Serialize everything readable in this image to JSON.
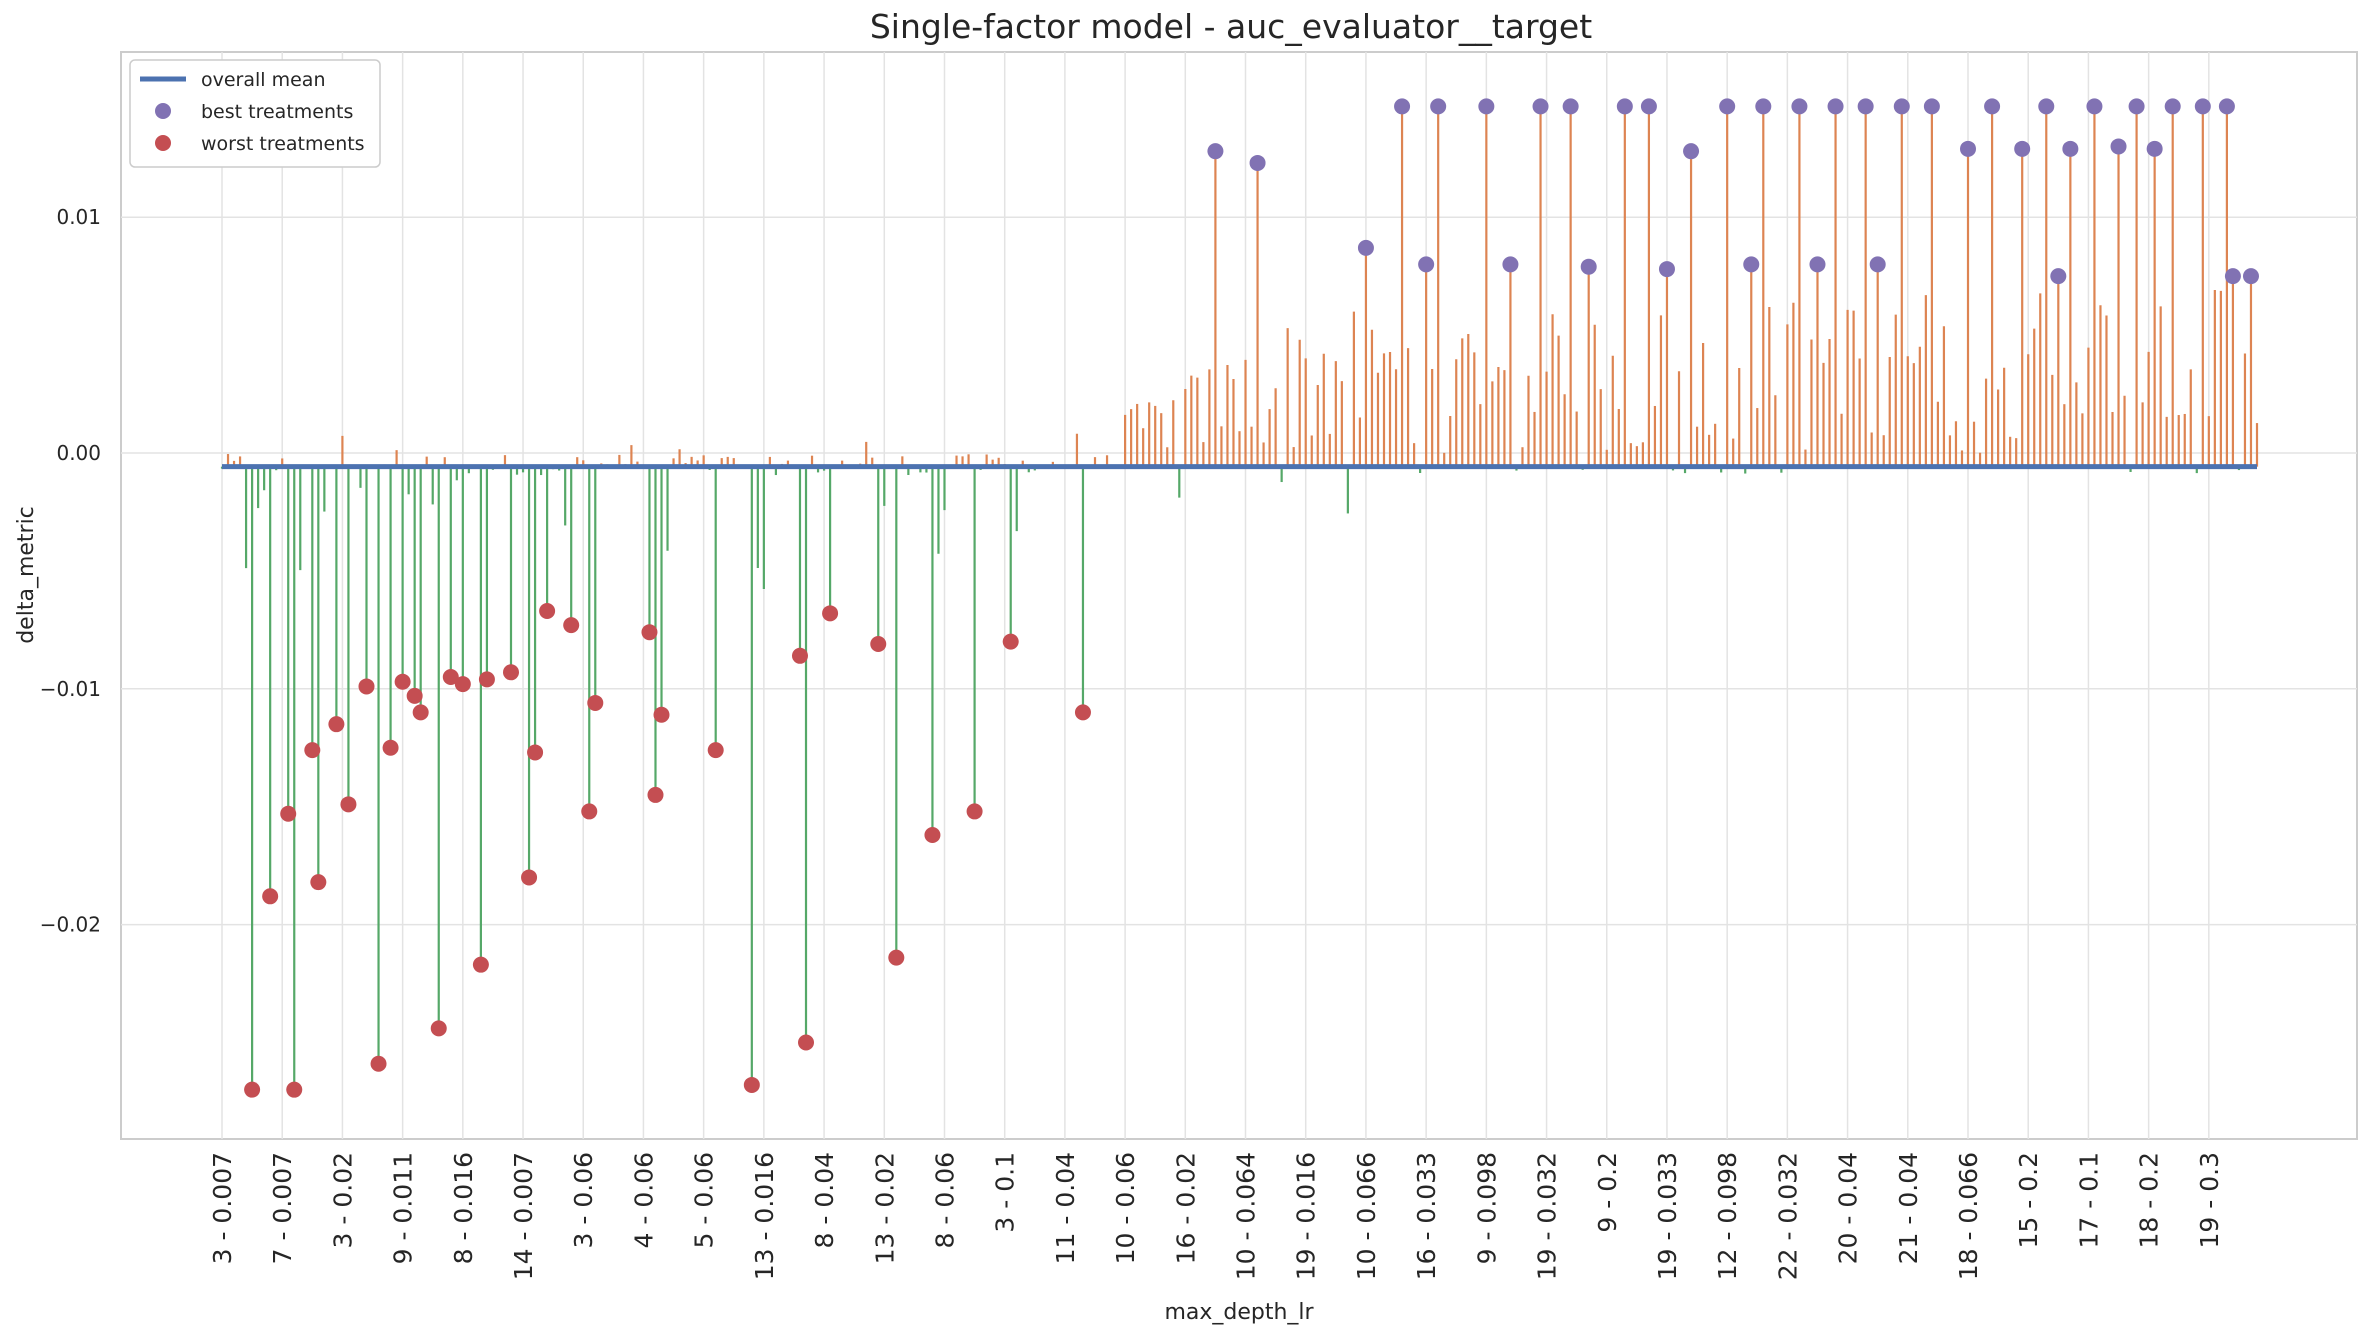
{
  "chart_data": {
    "type": "lollipop",
    "title": "Single-factor model - auc_evaluator__target",
    "xlabel": "max_depth_lr",
    "ylabel": "delta_metric",
    "ylim": [
      -0.0293,
      0.0171
    ],
    "y_ticks": [
      0.01,
      0.0,
      -0.01,
      -0.02
    ],
    "y_tick_labels": [
      "0.01",
      "0.00",
      "−0.01",
      "−0.02"
    ],
    "x_tick_labels": [
      "3 - 0.007",
      "7 - 0.007",
      "3 - 0.02",
      "9 - 0.011",
      "8 - 0.016",
      "14 - 0.007",
      "3 - 0.06",
      "4 - 0.06",
      "5 - 0.06",
      "13 - 0.016",
      "8 - 0.04",
      "13 - 0.02",
      "8 - 0.06",
      "3 - 0.1",
      "11 - 0.04",
      "10 - 0.06",
      "16 - 0.02",
      "10 - 0.064",
      "19 - 0.016",
      "10 - 0.066",
      "16 - 0.033",
      "9 - 0.098",
      "19 - 0.032",
      "9 - 0.2",
      "19 - 0.033",
      "12 - 0.098",
      "22 - 0.032",
      "20 - 0.04",
      "21 - 0.04",
      "18 - 0.066",
      "15 - 0.2",
      "17 - 0.1",
      "18 - 0.2",
      "19 - 0.3"
    ],
    "tick_every": 10,
    "n_treatments": 339,
    "overall_mean": -0.00058,
    "legend": {
      "position": "top-left",
      "entries": [
        "overall mean",
        "best treatments",
        "worst treatments"
      ]
    },
    "colors": {
      "overall_mean": "#4c72b0",
      "best": "#8172b3",
      "worst": "#c44e52",
      "above_mean": "#dd8452",
      "below_mean": "#55a868",
      "grid": "#e3e3e3",
      "frame": "#cccccc"
    },
    "worst_treatments": [
      {
        "x": 5,
        "y": -0.027
      },
      {
        "x": 8,
        "y": -0.0188
      },
      {
        "x": 11,
        "y": -0.0153
      },
      {
        "x": 12,
        "y": -0.027
      },
      {
        "x": 15,
        "y": -0.0126
      },
      {
        "x": 16,
        "y": -0.0182
      },
      {
        "x": 19,
        "y": -0.0115
      },
      {
        "x": 21,
        "y": -0.0149
      },
      {
        "x": 24,
        "y": -0.0099
      },
      {
        "x": 26,
        "y": -0.0259
      },
      {
        "x": 28,
        "y": -0.0125
      },
      {
        "x": 30,
        "y": -0.0097
      },
      {
        "x": 32,
        "y": -0.0103
      },
      {
        "x": 33,
        "y": -0.011
      },
      {
        "x": 36,
        "y": -0.0244
      },
      {
        "x": 38,
        "y": -0.0095
      },
      {
        "x": 40,
        "y": -0.0098
      },
      {
        "x": 43,
        "y": -0.0217
      },
      {
        "x": 44,
        "y": -0.0096
      },
      {
        "x": 48,
        "y": -0.0093
      },
      {
        "x": 51,
        "y": -0.018
      },
      {
        "x": 52,
        "y": -0.0127
      },
      {
        "x": 54,
        "y": -0.0067
      },
      {
        "x": 58,
        "y": -0.0073
      },
      {
        "x": 61,
        "y": -0.0152
      },
      {
        "x": 62,
        "y": -0.0106
      },
      {
        "x": 71,
        "y": -0.0076
      },
      {
        "x": 72,
        "y": -0.0145
      },
      {
        "x": 73,
        "y": -0.0111
      },
      {
        "x": 82,
        "y": -0.0126
      },
      {
        "x": 88,
        "y": -0.0268
      },
      {
        "x": 96,
        "y": -0.0086
      },
      {
        "x": 97,
        "y": -0.025
      },
      {
        "x": 101,
        "y": -0.0068
      },
      {
        "x": 109,
        "y": -0.0081
      },
      {
        "x": 112,
        "y": -0.0214
      },
      {
        "x": 118,
        "y": -0.0162
      },
      {
        "x": 125,
        "y": -0.0152
      },
      {
        "x": 131,
        "y": -0.008
      },
      {
        "x": 143,
        "y": -0.011
      }
    ],
    "best_treatments": [
      {
        "x": 165,
        "y": 0.0128
      },
      {
        "x": 172,
        "y": 0.0123
      },
      {
        "x": 190,
        "y": 0.0087
      },
      {
        "x": 196,
        "y": 0.0147
      },
      {
        "x": 200,
        "y": 0.008
      },
      {
        "x": 202,
        "y": 0.0147
      },
      {
        "x": 210,
        "y": 0.0147
      },
      {
        "x": 214,
        "y": 0.008
      },
      {
        "x": 219,
        "y": 0.0147
      },
      {
        "x": 224,
        "y": 0.0147
      },
      {
        "x": 227,
        "y": 0.0079
      },
      {
        "x": 233,
        "y": 0.0147
      },
      {
        "x": 237,
        "y": 0.0147
      },
      {
        "x": 240,
        "y": 0.0078
      },
      {
        "x": 244,
        "y": 0.0128
      },
      {
        "x": 250,
        "y": 0.0147
      },
      {
        "x": 254,
        "y": 0.008
      },
      {
        "x": 256,
        "y": 0.0147
      },
      {
        "x": 265,
        "y": 0.008
      },
      {
        "x": 262,
        "y": 0.0147
      },
      {
        "x": 268,
        "y": 0.0147
      },
      {
        "x": 273,
        "y": 0.0147
      },
      {
        "x": 275,
        "y": 0.008
      },
      {
        "x": 279,
        "y": 0.0147
      },
      {
        "x": 284,
        "y": 0.0147
      },
      {
        "x": 290,
        "y": 0.0129
      },
      {
        "x": 294,
        "y": 0.0147
      },
      {
        "x": 299,
        "y": 0.0129
      },
      {
        "x": 303,
        "y": 0.0147
      },
      {
        "x": 305,
        "y": 0.0075
      },
      {
        "x": 307,
        "y": 0.0129
      },
      {
        "x": 311,
        "y": 0.0147
      },
      {
        "x": 315,
        "y": 0.013
      },
      {
        "x": 318,
        "y": 0.0147
      },
      {
        "x": 321,
        "y": 0.0129
      },
      {
        "x": 324,
        "y": 0.0147
      },
      {
        "x": 329,
        "y": 0.0147
      },
      {
        "x": 333,
        "y": 0.0147
      },
      {
        "x": 334,
        "y": 0.0075
      },
      {
        "x": 337,
        "y": 0.0075
      }
    ],
    "other_treatments_note": "remaining stems drawn procedurally"
  }
}
